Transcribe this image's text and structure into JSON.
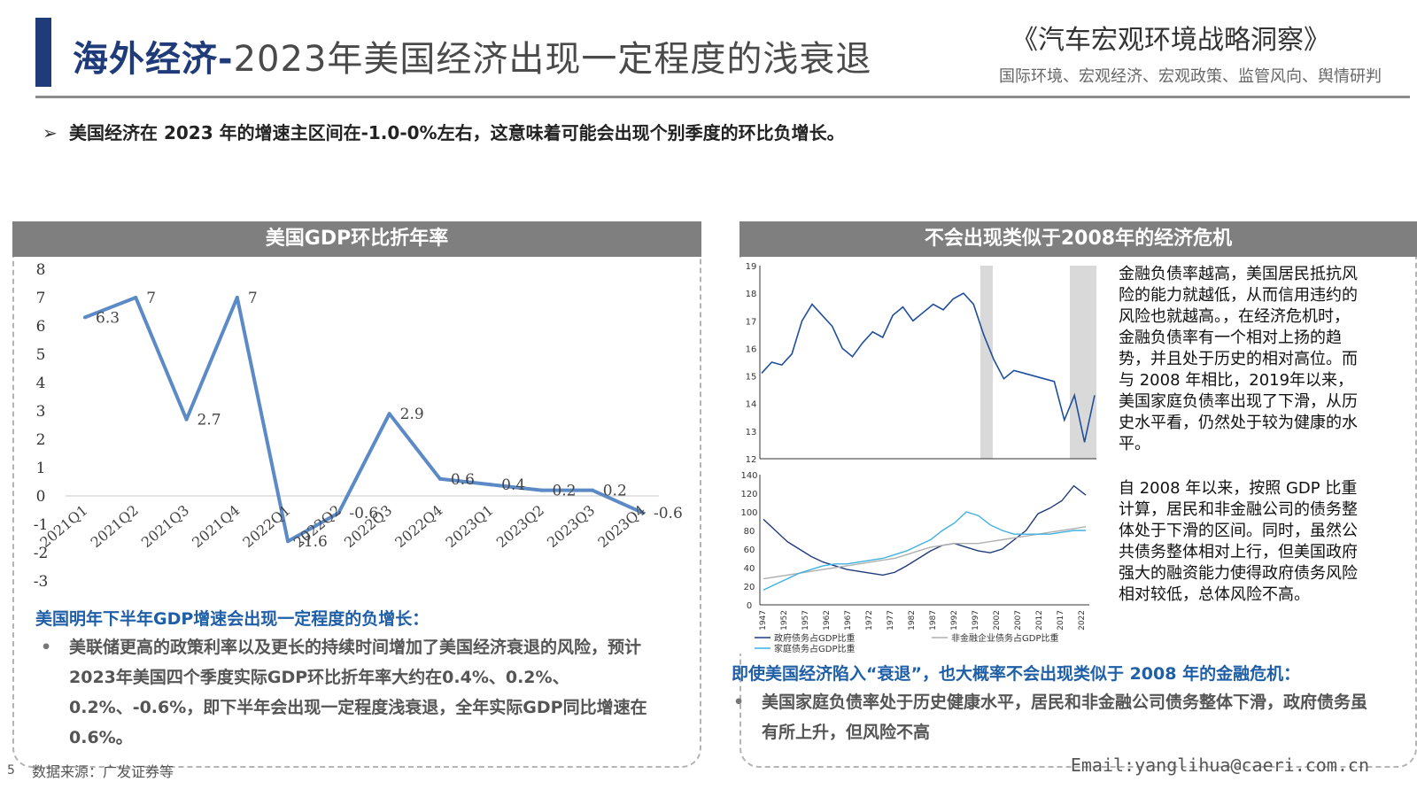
{
  "header": {
    "title_main": "海外经济-",
    "title_rest": "2023年美国经济出现一定程度的浅衰退",
    "brand": "《汽车宏观环境战略洞察》",
    "brand_sub": "国际环境、宏观经济、宏观政策、监管风向、舆情研判"
  },
  "summary": {
    "arrow": "➢",
    "text": "美国经济在 2023 年的增速主区间在-1.0-0%左右，这意味着可能会出现个别季度的环比负增长。"
  },
  "left_panel": {
    "title": "美国GDP环比折年率",
    "note_title": "美国明年下半年GDP增速会出现一定程度的负增长：",
    "note_bullet": "•",
    "note_text": "美联储更高的政策利率以及更长的持续时间增加了美国经济衰退的风险，预计2023年美国四个季度实际GDP环比折年率大约在0.4%、0.2%、0.2%、-0.6%，即下半年会出现一定程度浅衰退，全年实际GDP同比增速在0.6%。"
  },
  "right_panel": {
    "title": "不会出现类似于2008年的经济危机",
    "text1": "金融负债率越高，美国居民抵抗风险的能力就越低，从而信用违约的风险也就越高。，在经济危机时，金融负债率有一个相对上扬的趋势，并且处于历史的相对高位。而与 2008 年相比，2019年以来，美国家庭负债率出现了下滑，从历史水平看，仍然处于较为健康的水平。",
    "text2": "自 2008 年以来，按照 GDP 比重计算，居民和非金融公司的债务整体处于下滑的区间。同时，虽然公共债务整体相对上行，但美国政府强大的融资能力使得政府债务风险相对较低，总体风险不高。",
    "note_title": "即使美国经济陷入“衰退”，也大概率不会出现类似于 2008 年的金融危机：",
    "note_bullet": "•",
    "note_text": "美国家庭负债率处于历史健康水平，居民和非金融公司债务整体下滑，政府债务虽有所上升，但风险不高"
  },
  "footer": {
    "page": "5",
    "source": "数据来源：广发证券等",
    "email": "Email:yanglihua@caeri.com.cn"
  },
  "colors": {
    "navy": "#1f3b7a",
    "line_blue": "#5b8ac6",
    "panel_gray": "#7f7f7f",
    "note_blue": "#1f5fa8"
  },
  "chart_data": [
    {
      "type": "line",
      "categories": [
        "2021Q1",
        "2021Q2",
        "2021Q3",
        "2021Q4",
        "2022Q1",
        "2022Q2",
        "2022Q3",
        "2022Q4",
        "2023Q1",
        "2023Q2",
        "2023Q3",
        "2023Q4"
      ],
      "values": [
        6.3,
        7,
        2.7,
        7,
        -1.6,
        -0.6,
        2.9,
        0.6,
        0.4,
        0.2,
        0.2,
        -0.6
      ],
      "data_labels": [
        "6.3",
        "7",
        "2.7",
        "7",
        "-1.6",
        "-0.6",
        "2.9",
        "0.6",
        "0.4",
        "0.2",
        "0.2",
        "-0.6"
      ],
      "yticks": [
        "8",
        "7",
        "6",
        "5",
        "4",
        "3",
        "2",
        "1",
        "0",
        "-1",
        "-2",
        "-3"
      ],
      "ylim": [
        -3,
        8
      ],
      "grid": false
    },
    {
      "type": "line",
      "x_ticks": [
        "19",
        "18",
        "17",
        "16",
        "15",
        "14",
        "13",
        "12"
      ],
      "ylim": [
        12,
        19
      ],
      "shaded_periods": [
        "2008",
        "2020"
      ],
      "series": [
        {
          "values": [
            15.1,
            15.5,
            15.4,
            15.8,
            17.0,
            17.6,
            17.2,
            16.8,
            16.0,
            15.7,
            16.2,
            16.6,
            16.4,
            17.2,
            17.5,
            17.0,
            17.3,
            17.6,
            17.4,
            17.8,
            18.0,
            17.6,
            16.5,
            15.6,
            14.9,
            15.2,
            15.1,
            15.0,
            14.9,
            14.8,
            13.4,
            14.3,
            12.6,
            14.3
          ]
        }
      ]
    },
    {
      "type": "line",
      "yticks": [
        "140",
        "120",
        "100",
        "80",
        "60",
        "40",
        "20",
        "0"
      ],
      "x_ticks": [
        "1947",
        "1952",
        "1957",
        "1962",
        "1967",
        "1972",
        "1977",
        "1982",
        "1987",
        "1992",
        "1997",
        "2002",
        "2007",
        "2012",
        "2017",
        "2022"
      ],
      "ylim": [
        0,
        140
      ],
      "legend_items": [
        "政府债务占GDP比重",
        "非金融企业债务占GDP比重",
        "家庭债务占GDP比重"
      ],
      "legend_position": "bottom",
      "series": [
        {
          "values": [
            92,
            80,
            68,
            60,
            52,
            46,
            42,
            38,
            36,
            34,
            32,
            35,
            42,
            50,
            58,
            64,
            66,
            62,
            58,
            56,
            60,
            70,
            80,
            98,
            104,
            112,
            128,
            118
          ]
        },
        {
          "values": [
            28,
            30,
            32,
            34,
            36,
            38,
            40,
            42,
            44,
            46,
            48,
            50,
            54,
            58,
            62,
            64,
            66,
            66,
            66,
            68,
            70,
            72,
            74,
            76,
            78,
            80,
            82,
            84
          ]
        },
        {
          "values": [
            16,
            22,
            28,
            34,
            38,
            42,
            44,
            44,
            46,
            48,
            50,
            54,
            58,
            64,
            70,
            80,
            88,
            100,
            96,
            86,
            80,
            76,
            76,
            76,
            76,
            78,
            80,
            80
          ]
        }
      ]
    }
  ]
}
